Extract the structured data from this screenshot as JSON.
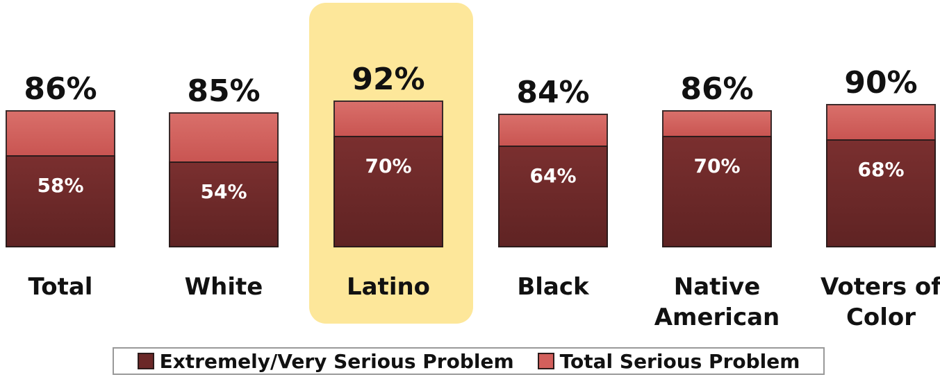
{
  "chart_data": {
    "type": "bar",
    "stacked": true,
    "categories": [
      "Total",
      "White",
      "Latino",
      "Black",
      "Native\nAmerican",
      "Voters of\nColor"
    ],
    "highlighted_category": "Latino",
    "series": [
      {
        "name": "Extremely/Very Serious Problem",
        "values": [
          58,
          54,
          70,
          64,
          70,
          68
        ],
        "color": "#6b2828"
      },
      {
        "name": "Total Serious Problem",
        "values": [
          86,
          85,
          92,
          84,
          86,
          90
        ],
        "color": "#d35f5c"
      }
    ],
    "value_labels_inner": [
      "58%",
      "54%",
      "70%",
      "64%",
      "70%",
      "68%"
    ],
    "value_labels_total": [
      "86%",
      "85%",
      "92%",
      "84%",
      "86%",
      "90%"
    ],
    "legend_position": "bottom",
    "highlight_color": "#fde79a"
  }
}
